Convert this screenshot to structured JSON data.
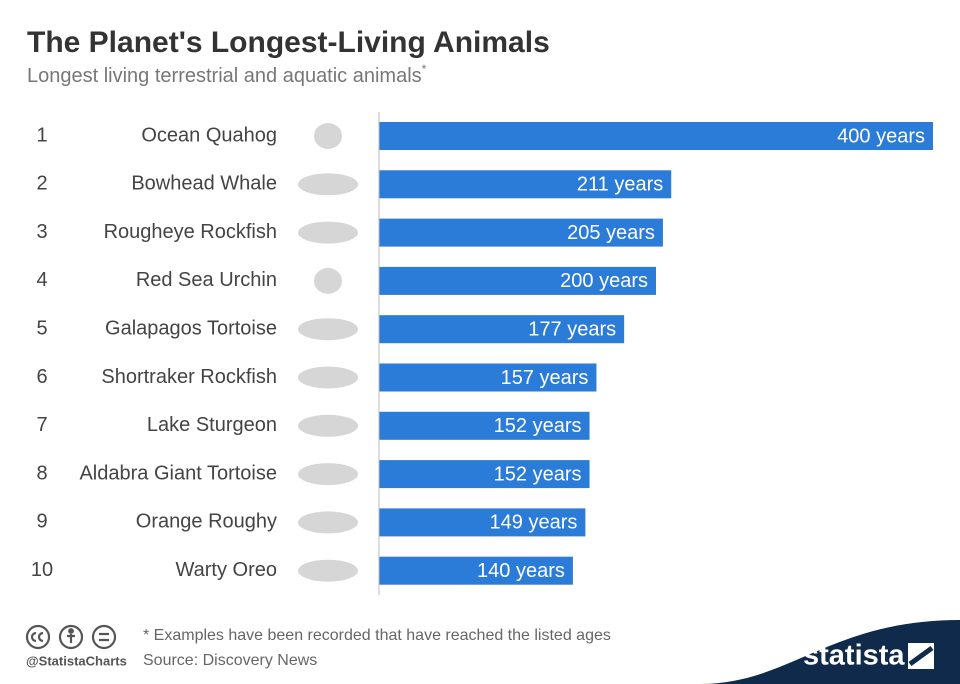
{
  "chart_data": {
    "type": "bar",
    "orientation": "horizontal",
    "title": "The Planet's Longest-Living Animals",
    "subtitle": "Longest living terrestrial and aquatic animals",
    "subtitle_marker": "*",
    "ranks": [
      1,
      2,
      3,
      4,
      5,
      6,
      7,
      8,
      9,
      10
    ],
    "categories": [
      "Ocean Quahog",
      "Bowhead Whale",
      "Rougheye Rockfish",
      "Red Sea Urchin",
      "Galapagos Tortoise",
      "Shortraker Rockfish",
      "Lake Sturgeon",
      "Aldabra Giant Tortoise",
      "Orange Roughy",
      "Warty Oreo"
    ],
    "values": [
      400,
      211,
      205,
      200,
      177,
      157,
      152,
      152,
      149,
      140
    ],
    "value_labels": [
      "400 years",
      "211 years",
      "205 years",
      "200 years",
      "177 years",
      "157 years",
      "152 years",
      "152 years",
      "149 years",
      "140 years"
    ],
    "color": "#2b7bd9",
    "xlim": [
      0,
      400
    ],
    "footnote": "* Examples have been recorded that have reached the listed ages",
    "source": "Source: Discovery News",
    "credit": "@StatistaCharts",
    "brand": "statista"
  }
}
